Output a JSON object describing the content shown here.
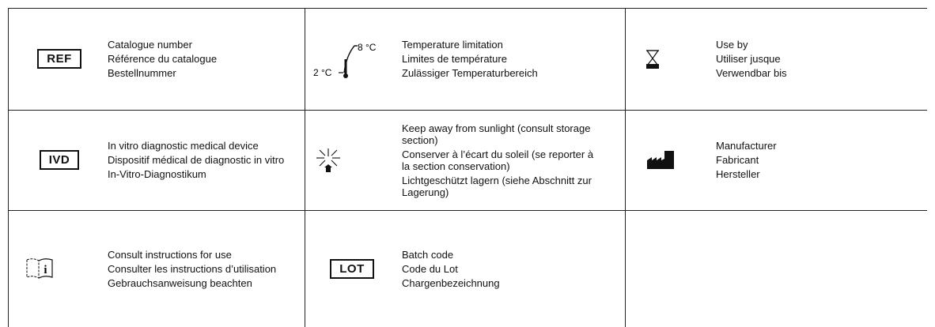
{
  "table": {
    "rows": [
      [
        {
          "symbol": "REF",
          "lines": [
            "Catalogue number",
            "Référence du catalogue",
            "Bestellnummer"
          ]
        },
        {
          "symbol_low": "2 °C",
          "symbol_high": "8 °C",
          "lines": [
            "Temperature limitation",
            "Limites de température",
            "Zulässiger Temperaturbereich"
          ]
        },
        {
          "lines": [
            "Use by",
            "Utiliser jusque",
            "Verwendbar bis"
          ]
        }
      ],
      [
        {
          "symbol": "IVD",
          "lines": [
            "In vitro diagnostic medical device",
            "Dispositif médical de diagnostic in vitro",
            "In-Vitro-Diagnostikum"
          ]
        },
        {
          "lines": [
            "Keep away from sunlight (consult storage section)",
            "Conserver à l’écart du soleil (se reporter à la section conservation)",
            "Lichtgeschützt lagern (siehe Abschnitt zur Lagerung)"
          ]
        },
        {
          "lines": [
            "Manufacturer",
            "Fabricant",
            "Hersteller"
          ]
        }
      ],
      [
        {
          "lines": [
            "Consult instructions for use",
            "Consulter les instructions d’utilisation",
            "Gebrauchsanweisung beachten"
          ]
        },
        {
          "symbol": "LOT",
          "lines": [
            "Batch code",
            "Code du Lot",
            "Chargenbezeichnung"
          ]
        }
      ]
    ]
  }
}
